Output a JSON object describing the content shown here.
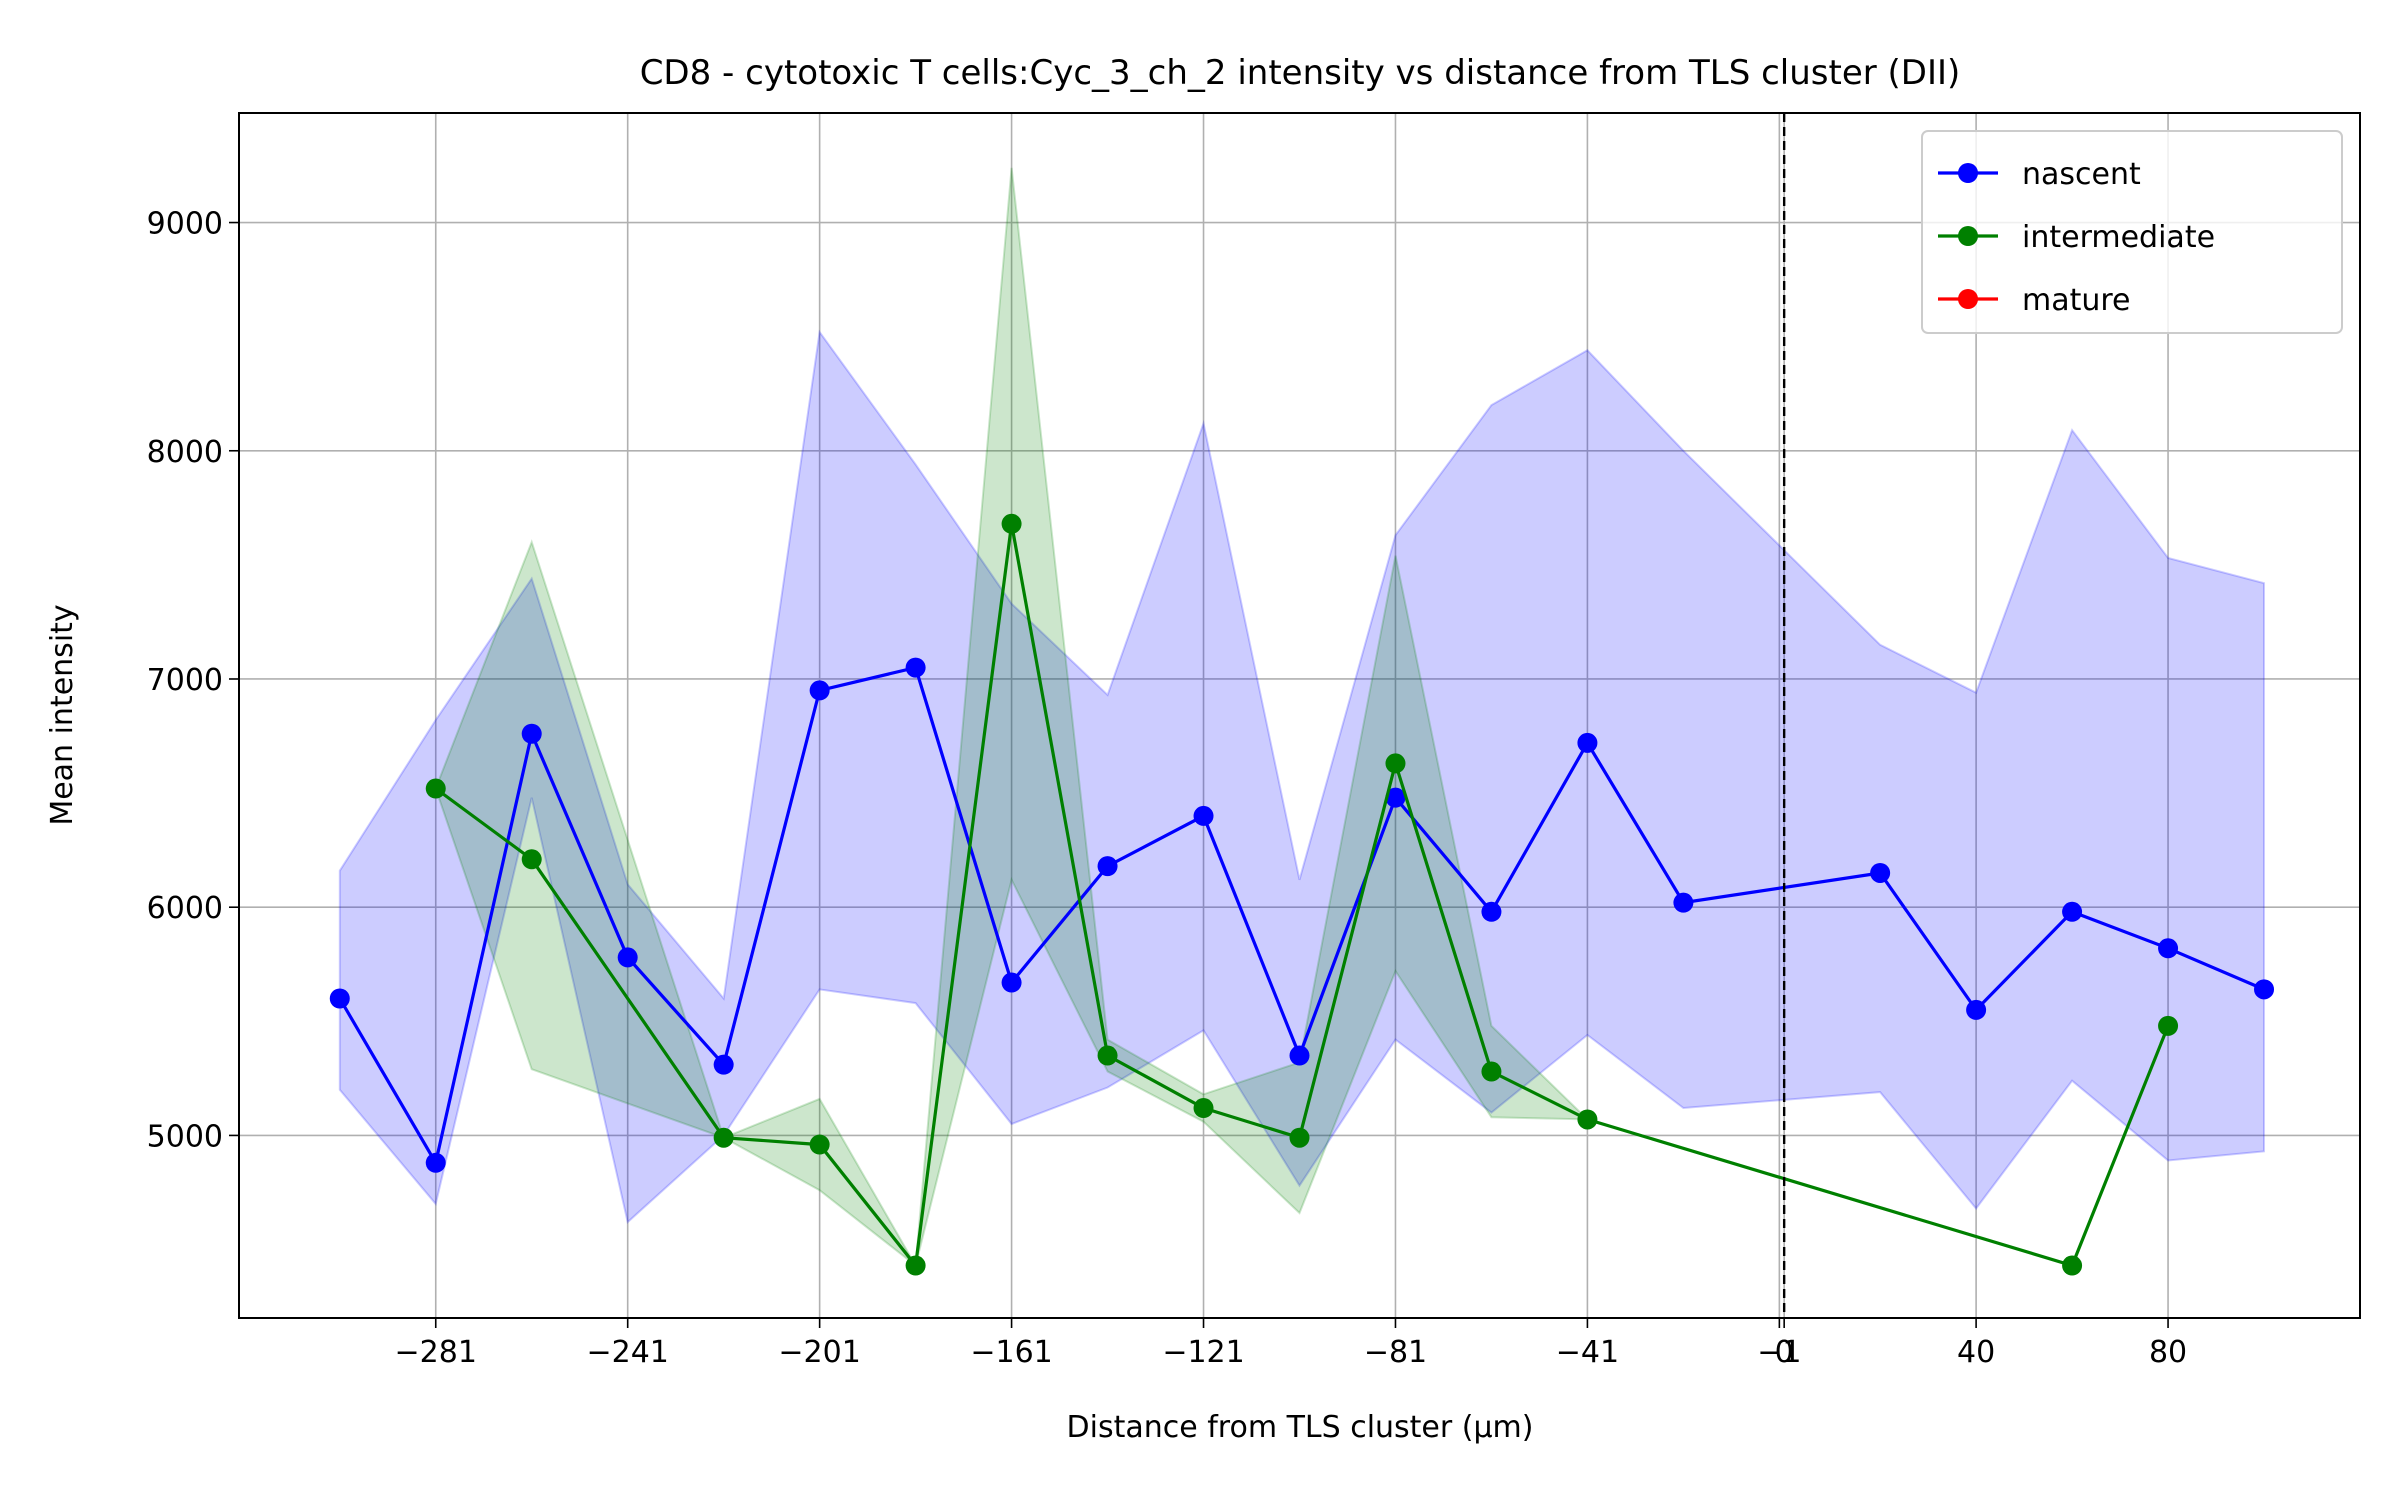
{
  "chart_data": {
    "type": "line",
    "title": "CD8 - cytotoxic T cells:Cyc_3_ch_2 intensity vs distance from TLS cluster (DII)",
    "xlabel": "Distance from TLS cluster (μm)",
    "ylabel": "Mean intensity",
    "xlim": [
      -322,
      120
    ],
    "ylim": [
      4200,
      9480
    ],
    "x_ticks": [
      -281,
      -241,
      -201,
      -161,
      -121,
      -81,
      -41,
      -1,
      0,
      40,
      80
    ],
    "x_tick_labels": [
      "−281",
      "−241",
      "−201",
      "−161",
      "−121",
      "−81",
      "−41",
      "−1",
      "0",
      "40",
      "80"
    ],
    "y_ticks": [
      5000,
      6000,
      7000,
      8000,
      9000
    ],
    "y_tick_labels": [
      "5000",
      "6000",
      "7000",
      "8000",
      "9000"
    ],
    "grid": true,
    "vline": {
      "x": 0,
      "style": "dashed",
      "color": "#000000"
    },
    "legend_position": "top-right",
    "series": [
      {
        "name": "nascent",
        "color": "#0000ff",
        "x": [
          -301,
          -281,
          -261,
          -241,
          -221,
          -201,
          -181,
          -161,
          -141,
          -121,
          -101,
          -81,
          -61,
          -41,
          -21,
          20,
          40,
          60,
          80,
          100
        ],
        "y": [
          5600,
          4880,
          6760,
          5780,
          5310,
          6950,
          7050,
          5670,
          6180,
          6400,
          5350,
          6480,
          5980,
          6720,
          6020,
          6150,
          5550,
          5980,
          5820,
          5640
        ],
        "band_upper": [
          6160,
          6820,
          7440,
          6100,
          5600,
          8520,
          7940,
          7330,
          6930,
          8120,
          6120,
          7630,
          8200,
          8440,
          8000,
          7150,
          6940,
          8090,
          7530,
          7420
        ],
        "band_lower": [
          5200,
          4700,
          6480,
          4620,
          5000,
          5640,
          5580,
          5050,
          5210,
          5460,
          4780,
          5420,
          5100,
          5440,
          5120,
          5190,
          4680,
          5240,
          4890,
          4930
        ]
      },
      {
        "name": "intermediate",
        "color": "#008000",
        "x": [
          -281,
          -261,
          -221,
          -201,
          -181,
          -161,
          -141,
          -121,
          -101,
          -81,
          -61,
          -41,
          60,
          80
        ],
        "y": [
          6520,
          6210,
          4990,
          4960,
          4430,
          7680,
          5350,
          5120,
          4990,
          6630,
          5280,
          5070,
          4430,
          5480
        ],
        "band_upper": [
          6520,
          7600,
          4990,
          5160,
          4430,
          9240,
          5420,
          5180,
          5320,
          7540,
          5480,
          5070,
          4430,
          5480
        ],
        "band_lower": [
          6520,
          5290,
          4990,
          4760,
          4430,
          6120,
          5280,
          5060,
          4660,
          5720,
          5080,
          5070,
          4430,
          5480
        ]
      },
      {
        "name": "mature",
        "color": "#ff0000",
        "x": [],
        "y": []
      }
    ]
  }
}
